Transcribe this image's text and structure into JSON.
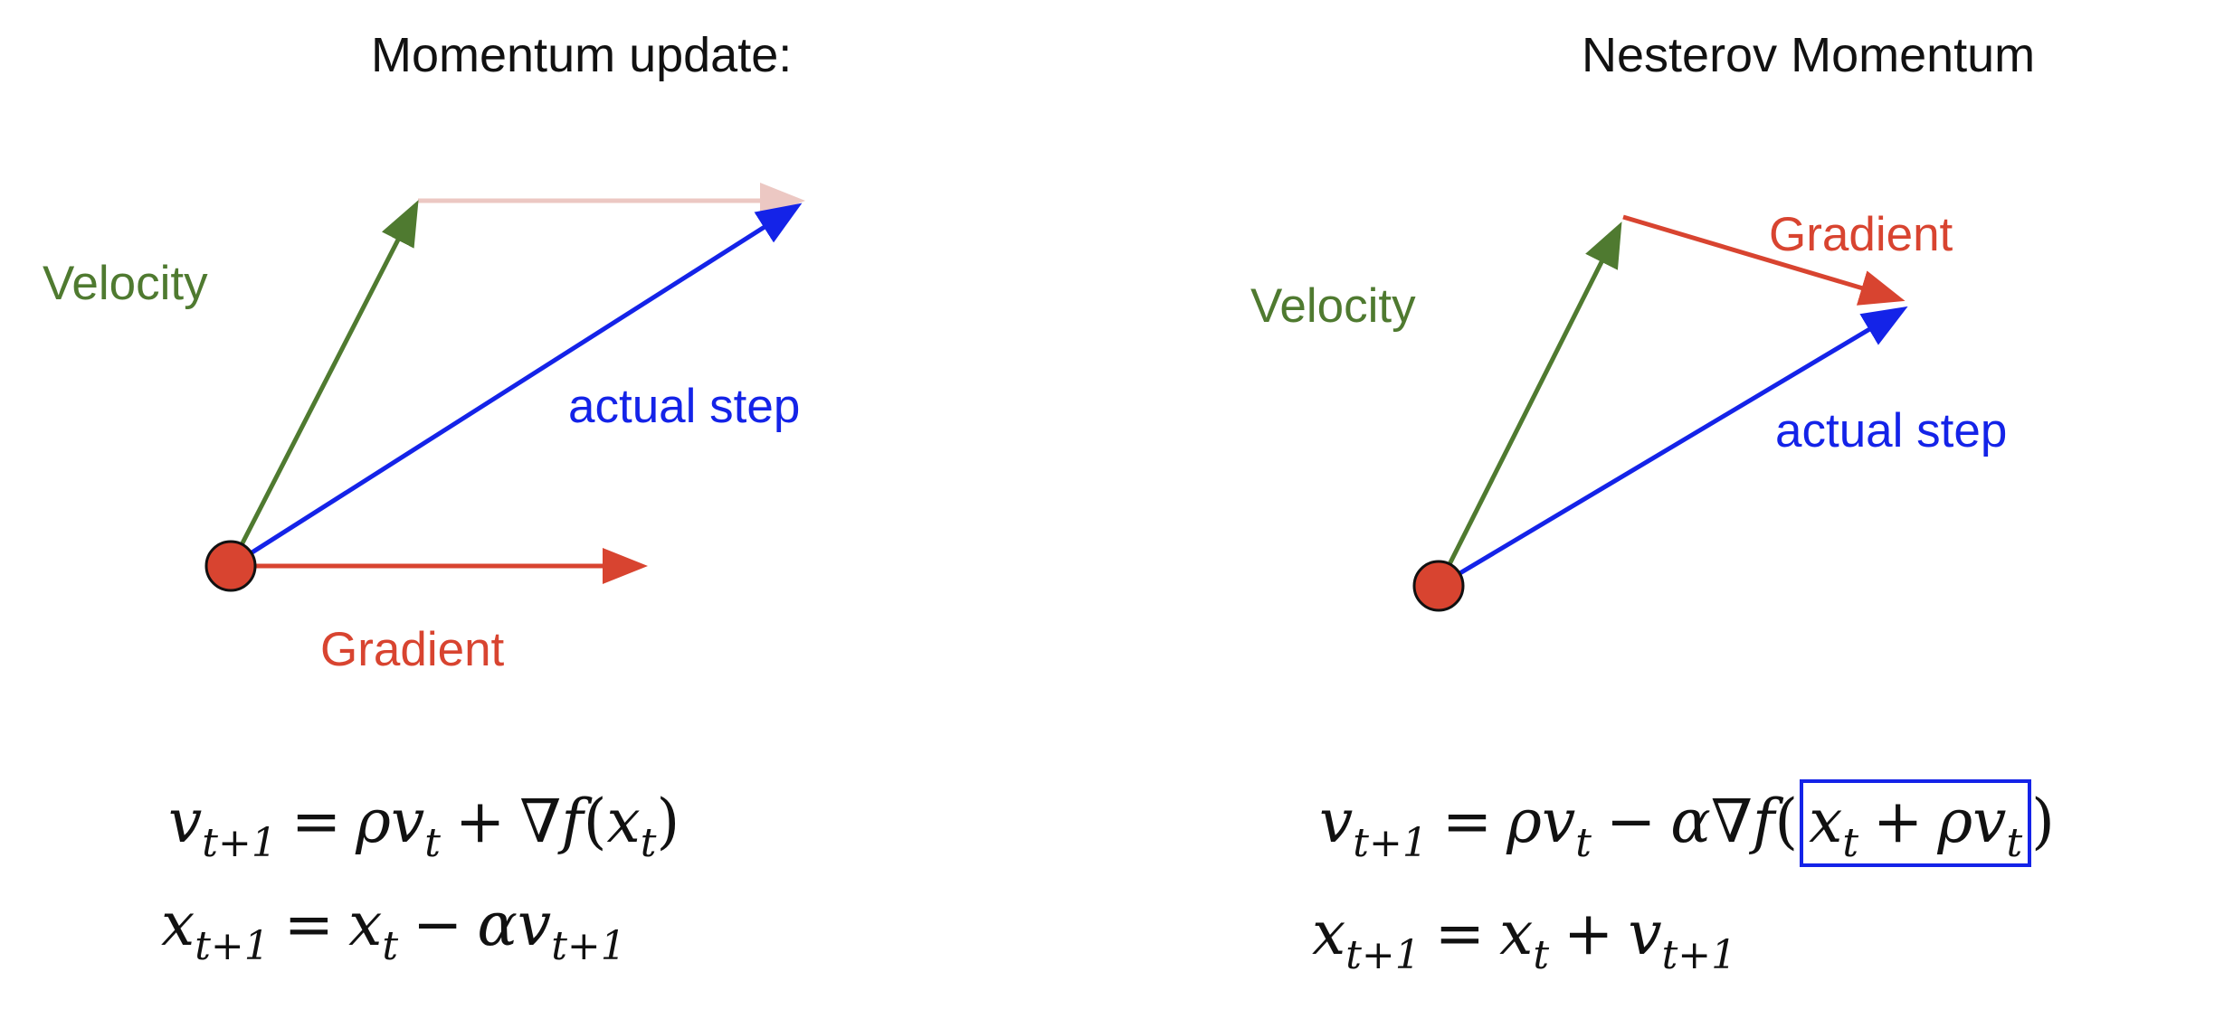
{
  "left_panel": {
    "title": "Momentum update:",
    "labels": {
      "velocity": "Velocity",
      "actual_step": "actual step",
      "gradient": "Gradient"
    },
    "equation_1": {
      "lhs_var": "v",
      "lhs_sub": "t+1",
      "eq": "=",
      "t1_coef": "ρ",
      "t1_var": "v",
      "t1_sub": "t",
      "op": "+",
      "grad": "∇",
      "fn": "f",
      "open": "(",
      "arg_var": "x",
      "arg_sub": "t",
      "close": ")"
    },
    "equation_2": {
      "lhs_var": "x",
      "lhs_sub": "t+1",
      "eq": "=",
      "t1_var": "x",
      "t1_sub": "t",
      "op": "−",
      "t2_coef": "α",
      "t2_var": "v",
      "t2_sub": "t+1"
    }
  },
  "right_panel": {
    "title": "Nesterov Momentum",
    "labels": {
      "velocity": "Velocity",
      "gradient": "Gradient",
      "actual_step": "actual step"
    },
    "equation_1": {
      "lhs_var": "v",
      "lhs_sub": "t+1",
      "eq": "=",
      "t1_coef": "ρ",
      "t1_var": "v",
      "t1_sub": "t",
      "op": "−",
      "alpha": "α",
      "grad": "∇",
      "fn": "f",
      "open": "(",
      "box_var1": "x",
      "box_sub1": "t",
      "box_op": "+",
      "box_coef": "ρ",
      "box_var2": "v",
      "box_sub2": "t",
      "close": ")"
    },
    "equation_2": {
      "lhs_var": "x",
      "lhs_sub": "t+1",
      "eq": "=",
      "t1_var": "x",
      "t1_sub": "t",
      "op": "+",
      "t2_var": "v",
      "t2_sub": "t+1"
    }
  },
  "colors": {
    "velocity": "#4f7a30",
    "gradient": "#d84430",
    "actual_step": "#1423e8",
    "ghost_gradient": "#ecc8c3",
    "point_fill": "#d84430",
    "highlight_box": "#1423e8"
  }
}
